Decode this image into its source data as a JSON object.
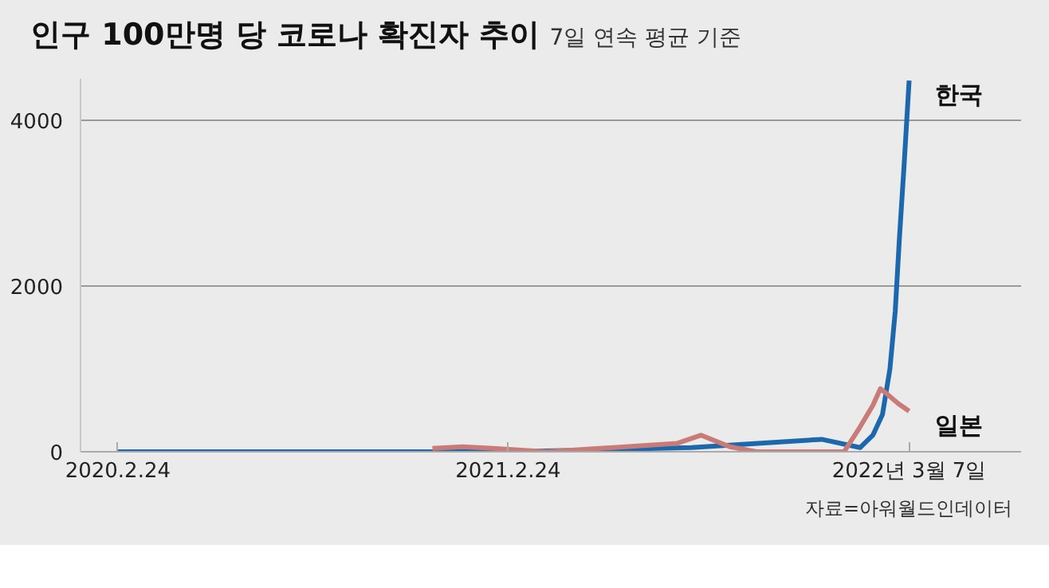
{
  "chart_data": {
    "type": "line",
    "title": "인구 100만명 당 코로나 확진자 추이",
    "subtitle": "7일 연속 평균 기준",
    "annotations": [
      "자료=아워월드인데이터"
    ],
    "xlim": [
      "2020-01-20",
      "2022-06-20"
    ],
    "xticks": [
      {
        "value": "2020-02-24",
        "label": "2020.2.24"
      },
      {
        "value": "2021-02-24",
        "label": "2021.2.24"
      },
      {
        "value": "2022-03-07",
        "label": "2022년 3월 7일"
      }
    ],
    "ylim": [
      0,
      4500
    ],
    "yticks": [
      0,
      2000,
      4000
    ],
    "grid": "y",
    "legend": false,
    "line_style": "solid",
    "marker": "none",
    "series": [
      {
        "name": "일본",
        "color": "#c97b78",
        "x": [
          "2020-12-15",
          "2021-01-12",
          "2021-02-10",
          "2021-04-01",
          "2021-08-01",
          "2021-08-24",
          "2021-09-20",
          "2021-10-15",
          "2021-12-20",
          "2022-01-05",
          "2022-01-20",
          "2022-02-01",
          "2022-02-08",
          "2022-02-14",
          "2022-02-25",
          "2022-03-07"
        ],
        "values": [
          40,
          60,
          40,
          null,
          100,
          200,
          60,
          0,
          0,
          0,
          300,
          560,
          760,
          700,
          580,
          490
        ]
      },
      {
        "name": "한국",
        "color": "#1d67ad",
        "x": [
          "2020-02-24",
          "2020-03-05",
          "2020-09-01",
          "2020-12-25",
          "2021-02-24",
          "2021-08-15",
          "2021-12-15",
          "2022-01-20",
          "2022-02-01",
          "2022-02-10",
          "2022-02-17",
          "2022-02-22",
          "2022-02-26",
          "2022-03-02",
          "2022-03-07"
        ],
        "values": [
          0,
          0,
          0,
          0,
          0,
          50,
          150,
          50,
          200,
          450,
          1000,
          1700,
          2600,
          3400,
          4480
        ]
      }
    ]
  }
}
